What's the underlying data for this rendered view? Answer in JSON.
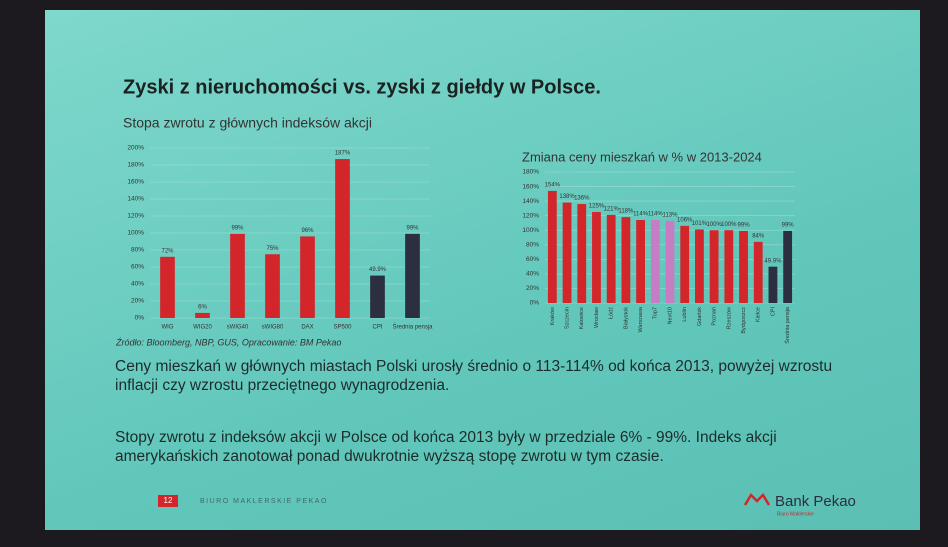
{
  "title": "Zyski z nieruchomości vs. zyski z giełdy w Polsce.",
  "chart_data": [
    {
      "type": "bar",
      "title": "Stopa zwrotu z głównych indeksów akcji",
      "categories": [
        "WIG",
        "WIG20",
        "sWIG40",
        "sWIG80",
        "DAX",
        "SP500",
        "CPI",
        "Średnia pensja"
      ],
      "values": [
        72,
        6,
        99,
        75,
        96,
        187,
        49.9,
        99
      ],
      "value_labels": [
        "72%",
        "6%",
        "99%",
        "75%",
        "96%",
        "187%",
        "49.9%",
        "99%"
      ],
      "colors": [
        "#d3262b",
        "#d3262b",
        "#d3262b",
        "#d3262b",
        "#d3262b",
        "#d3262b",
        "#2b2f3f",
        "#2b2f3f"
      ],
      "ylim": [
        0,
        200
      ],
      "yticks": [
        {
          "value": 0,
          "label": "0%"
        },
        {
          "value": 20,
          "label": "20%"
        },
        {
          "value": 40,
          "label": "40%"
        },
        {
          "value": 60,
          "label": "60%"
        },
        {
          "value": 80,
          "label": "80%"
        },
        {
          "value": 100,
          "label": "100%"
        },
        {
          "value": 120,
          "label": "120%"
        },
        {
          "value": 140,
          "label": "140%"
        },
        {
          "value": 160,
          "label": "160%"
        },
        {
          "value": 180,
          "label": "180%"
        },
        {
          "value": 200,
          "label": "200%"
        }
      ],
      "grid": true
    },
    {
      "type": "bar",
      "title": "Zmiana ceny mieszkań w % w 2013-2024",
      "categories": [
        "Kraków",
        "Szczecin",
        "Katowice",
        "Wrocław",
        "Łódź",
        "Białystok",
        "Warszawa",
        "Top7",
        "Next10",
        "Lublin",
        "Gdańsk",
        "Poznań",
        "Rzeszów",
        "Bydgoszcz",
        "Kielce",
        "CPI",
        "Średnia pensja"
      ],
      "values": [
        154,
        138,
        136,
        125,
        121,
        118,
        114,
        114,
        113,
        106,
        101,
        100,
        100,
        99,
        84,
        49.9,
        99
      ],
      "value_labels": [
        "154%",
        "138%",
        "136%",
        "125%",
        "121%",
        "118%",
        "114%",
        "114%",
        "113%",
        "106%",
        "101%",
        "100%",
        "100%",
        "99%",
        "84%",
        "49.9%",
        "99%"
      ],
      "colors": [
        "#d3262b",
        "#d3262b",
        "#d3262b",
        "#d3262b",
        "#d3262b",
        "#d3262b",
        "#d3262b",
        "#c77dc4",
        "#c77dc4",
        "#d3262b",
        "#d3262b",
        "#d3262b",
        "#d3262b",
        "#d3262b",
        "#d3262b",
        "#2b2f3f",
        "#2b2f3f"
      ],
      "ylim": [
        0,
        180
      ],
      "yticks": [
        {
          "value": 0,
          "label": "0%"
        },
        {
          "value": 20,
          "label": "20%"
        },
        {
          "value": 40,
          "label": "40%"
        },
        {
          "value": 60,
          "label": "60%"
        },
        {
          "value": 80,
          "label": "80%"
        },
        {
          "value": 100,
          "label": "100%"
        },
        {
          "value": 120,
          "label": "120%"
        },
        {
          "value": 140,
          "label": "140%"
        },
        {
          "value": 160,
          "label": "160%"
        },
        {
          "value": 180,
          "label": "180%"
        }
      ],
      "grid": true
    }
  ],
  "source": "Źródło: Bloomberg, NBP, GUS, Opracowanie: BM Pekao",
  "paragraphs": [
    "Ceny mieszkań w głównych miastach Polski urosły średnio o 113-114% od końca 2013, powyżej wzrostu inflacji czy wzrostu przeciętnego wynagrodzenia.",
    "Stopy zwrotu z indeksów akcji w Polsce od końca 2013 były w przedziale 6% - 99%. Indeks akcji amerykańskich zanotował ponad dwukrotnie wyższą stopę zwrotu w tym czasie."
  ],
  "footer": {
    "page": "12",
    "department": "BIURO MAKLERSKIE PEKAO",
    "brand": "Bank Pekao",
    "brand_sub": "Biuro Maklerskie"
  }
}
